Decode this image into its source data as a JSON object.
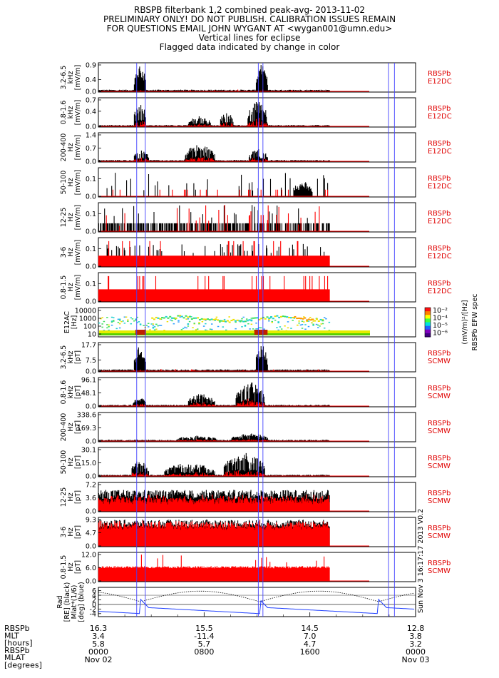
{
  "title": {
    "line1": "RBSPB filterbank 1,2 combined peak-avg- 2013-11-02",
    "line2": "PRELIMINARY ONLY! DO NOT PUBLISH. CALIBRATION ISSUES REMAIN",
    "line3": "FOR QUESTIONS EMAIL JOHN WYGANT AT <wygan001@umn.edu>",
    "line4": "Vertical lines for eclipse",
    "line5": "Flagged data indicated by change in color"
  },
  "colors": {
    "black_trace": "#000000",
    "flag": "#ff0000",
    "eclipse": "#4040ff",
    "tag": "#e00000"
  },
  "chart_data": {
    "type": "line",
    "x_range_hours": [
      0,
      24
    ],
    "eclipse_lines_hours": [
      2.9,
      3.55,
      12.1,
      12.45,
      21.95,
      22.4
    ],
    "panels": [
      {
        "label": [
          "3.2-6.5",
          "kHz",
          "[mV/m]"
        ],
        "ticks": [
          "0.9",
          "0.4",
          "0.0"
        ],
        "ylim": [
          0,
          0.9
        ],
        "tag": [
          "RBSPb",
          "E12DC"
        ],
        "style": "burst_low",
        "flag": "spikes",
        "events": [
          [
            2.7,
            3.6,
            0.9
          ],
          [
            11.9,
            12.8,
            0.9
          ]
        ]
      },
      {
        "label": [
          "0.8-1.6",
          "kHz",
          "[mV/m]"
        ],
        "ticks": [
          "0.7",
          "0.4",
          "0.0"
        ],
        "ylim": [
          0,
          0.7
        ],
        "tag": [
          "RBSPb",
          "E12DC"
        ],
        "style": "burst_mid",
        "flag": "spikes",
        "events": [
          [
            2.7,
            3.6,
            0.7
          ],
          [
            9.2,
            10.2,
            0.4
          ],
          [
            11.3,
            12.8,
            0.7
          ],
          [
            6.8,
            8.5,
            0.25
          ]
        ]
      },
      {
        "label": [
          "200-400",
          "Hz",
          "[mV/m]"
        ],
        "ticks": [
          "1.4",
          "0.7",
          "0.0"
        ],
        "ylim": [
          0,
          1.4
        ],
        "tag": [
          "RBSPb",
          "E12DC"
        ],
        "style": "burst_mid",
        "flag": "spikes",
        "events": [
          [
            2.7,
            3.8,
            0.6
          ],
          [
            6.5,
            8.8,
            0.9
          ],
          [
            11.4,
            12.8,
            0.7
          ]
        ]
      },
      {
        "label": [
          "50-100",
          "Hz",
          "[mV/m]"
        ],
        "ticks": [
          "0.1",
          "0.0"
        ],
        "ylim": [
          0,
          0.15
        ],
        "tag": [
          "RBSPb",
          "E12DC"
        ],
        "style": "sparse_hi",
        "flag": "low",
        "events": [
          [
            14.8,
            16.2,
            0.09
          ]
        ]
      },
      {
        "label": [
          "12-25",
          "Hz",
          "[mV/m]"
        ],
        "ticks": [
          "0.1",
          "0.0"
        ],
        "ylim": [
          0,
          0.15
        ],
        "tag": [
          "RBSPb",
          "E12DC"
        ],
        "style": "comb",
        "flag": "low",
        "events": []
      },
      {
        "label": [
          "3-6",
          "Hz",
          "[mV/m]"
        ],
        "ticks": [
          "0.1",
          "0.0"
        ],
        "ylim": [
          0,
          0.15
        ],
        "tag": [
          "RBSPb",
          "E12DC"
        ],
        "style": "redfill",
        "flag": "solid",
        "events": []
      },
      {
        "label": [
          "0.8-1.5",
          "Hz",
          "[mV/m]"
        ],
        "ticks": [
          "0.1",
          "0.0"
        ],
        "ylim": [
          0,
          0.15
        ],
        "tag": [
          "RBSPb",
          "E12DC"
        ],
        "style": "redfill_tall",
        "flag": "solid",
        "events": []
      },
      {
        "label": [
          "E12AC",
          "[Hz]"
        ],
        "ticks": [
          "10000",
          "1000",
          "100",
          "10"
        ],
        "tag": [],
        "style": "spectrogram",
        "flag": "none",
        "events": []
      },
      {
        "label": [
          "3.2-6.5",
          "kHz",
          "[pT]"
        ],
        "ticks": [
          "17.7",
          "7.5",
          "0.0"
        ],
        "ylim": [
          0,
          17.7
        ],
        "tag": [
          "RBSPb",
          "SCMW"
        ],
        "style": "burst_low",
        "flag": "spikes",
        "events": [
          [
            2.7,
            3.6,
            17.7
          ],
          [
            11.9,
            12.8,
            17.7
          ]
        ]
      },
      {
        "label": [
          "0.8-1.6",
          "kHz",
          "[pT]"
        ],
        "ticks": [
          "96.1",
          "48.1",
          "0.0"
        ],
        "ylim": [
          0,
          96.1
        ],
        "tag": [
          "RBSPb",
          "SCMW"
        ],
        "style": "burst_mid",
        "flag": "spikes",
        "events": [
          [
            2.6,
            3.6,
            30
          ],
          [
            6.8,
            8.8,
            45
          ],
          [
            10.4,
            12.6,
            90
          ]
        ]
      },
      {
        "label": [
          "200-400",
          "Hz",
          "[pT]"
        ],
        "ticks": [
          "338.6",
          "169.3",
          "0.0"
        ],
        "ylim": [
          0,
          338.6
        ],
        "tag": [
          "RBSPb",
          "SCMW"
        ],
        "style": "burst_mid",
        "flag": "spikes",
        "events": [
          [
            6.0,
            9.0,
            60
          ],
          [
            10.0,
            12.8,
            90
          ]
        ]
      },
      {
        "label": [
          "50-100",
          "Hz",
          "[pT]"
        ],
        "ticks": [
          "30.1",
          "15.0",
          "0.0"
        ],
        "ylim": [
          0,
          30.1
        ],
        "tag": [
          "RBSPb",
          "SCMW"
        ],
        "style": "burst_mid",
        "flag": "spikes",
        "events": [
          [
            2.5,
            3.8,
            18
          ],
          [
            5.0,
            8.8,
            15
          ],
          [
            9.5,
            12.6,
            28
          ]
        ]
      },
      {
        "label": [
          "12-25",
          "Hz",
          "[pT]"
        ],
        "ticks": [
          "7.2",
          "3.6",
          "0.0"
        ],
        "ylim": [
          0,
          7.2
        ],
        "tag": [
          "RBSPb",
          "SCMW"
        ],
        "style": "dense",
        "flag": "mid",
        "events": []
      },
      {
        "label": [
          "3-6",
          "Hz",
          "[pT]"
        ],
        "ticks": [
          "9.3",
          "4.7",
          "0.0"
        ],
        "ylim": [
          0,
          9.3
        ],
        "tag": [
          "RBSPb",
          "SCMW"
        ],
        "style": "dense_red",
        "flag": "solid",
        "events": []
      },
      {
        "label": [
          "0.8-1.5",
          "Hz",
          "[pT]"
        ],
        "ticks": [
          "12.0",
          "6.0",
          "0.0"
        ],
        "ylim": [
          0,
          12.0
        ],
        "tag": [
          "RBSPb",
          "SCMW"
        ],
        "style": "redfill_mid",
        "flag": "solid",
        "events": []
      },
      {
        "label": [
          "Rad",
          "[RE] (black)",
          "Mlat*(1/6)",
          "[deg] (blue)"
        ],
        "ticks": [
          "6",
          "4",
          "2",
          "0",
          "-2",
          "-4"
        ],
        "ylim": [
          -5,
          6.5
        ],
        "tag": [],
        "style": "orbit",
        "flag": "none",
        "events": []
      }
    ],
    "spectrogram_colorbar": {
      "ticks": [
        "10⁻²",
        "10⁻⁴",
        "10⁻⁵",
        "10⁻⁶"
      ],
      "label1": "(mV/m)²/[Hz]",
      "label2": "RBSPb EFW spec"
    },
    "xaxis": {
      "row_labels": [
        "RBSPb",
        "MLT",
        "[hours]",
        "RBSPb",
        "MLAT",
        "[degrees]"
      ],
      "ticks": [
        {
          "hours": 0,
          "rad": "16.3",
          "mlt": "3.4",
          "mlat": "5.8",
          "time": "0000",
          "date": "Nov 02"
        },
        {
          "hours": 8,
          "rad": "15.5",
          "mlt": "-11.4",
          "mlat": "5.7",
          "time": "0800",
          "date": ""
        },
        {
          "hours": 16,
          "rad": "14.5",
          "mlt": "7.0",
          "mlat": "4.7",
          "time": "1600",
          "date": ""
        },
        {
          "hours": 24,
          "rad": "12.8",
          "mlt": "3.8",
          "mlat": "3.2",
          "time": "0000",
          "date": "Nov 03"
        }
      ]
    },
    "side_note": "Sun Nov  3 16:17:17 2013 V0.2"
  }
}
